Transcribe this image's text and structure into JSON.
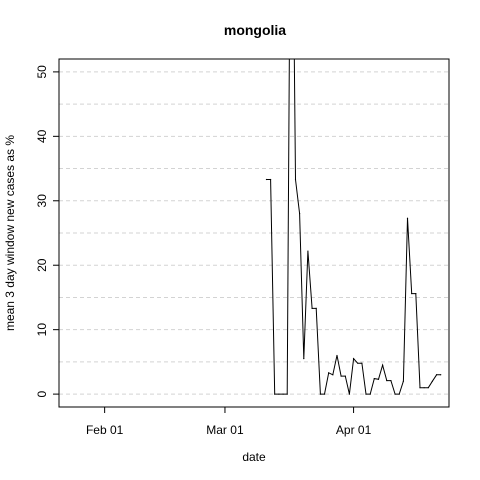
{
  "chart_data": {
    "type": "line",
    "title": "mongolia",
    "xlabel": "date",
    "ylabel": "mean  3  day window new cases as %",
    "x_start": "2020-01-21",
    "x_end": "2020-04-24",
    "ylim": [
      -2,
      52
    ],
    "x_ticks": [
      {
        "label": "Feb 01",
        "date": "2020-02-01"
      },
      {
        "label": "Mar 01",
        "date": "2020-03-01"
      },
      {
        "label": "Apr 01",
        "date": "2020-04-01"
      }
    ],
    "y_ticks": [
      0,
      10,
      20,
      30,
      40,
      50
    ],
    "y_gridlines": [
      0,
      5,
      10,
      15,
      20,
      25,
      30,
      35,
      40,
      45,
      50
    ],
    "grid": "horizontal-dashed",
    "series": [
      {
        "color": "#000000",
        "x": [
          "2020-03-11",
          "2020-03-12",
          "2020-03-13",
          "2020-03-14",
          "2020-03-15",
          "2020-03-16",
          "2020-03-17",
          "2020-03-18",
          "2020-03-19",
          "2020-03-20",
          "2020-03-21",
          "2020-03-22",
          "2020-03-23",
          "2020-03-24",
          "2020-03-25",
          "2020-03-26",
          "2020-03-27",
          "2020-03-28",
          "2020-03-29",
          "2020-03-30",
          "2020-03-31",
          "2020-04-01",
          "2020-04-02",
          "2020-04-03",
          "2020-04-04",
          "2020-04-05",
          "2020-04-06",
          "2020-04-07",
          "2020-04-08",
          "2020-04-09",
          "2020-04-10",
          "2020-04-11",
          "2020-04-12",
          "2020-04-13",
          "2020-04-14",
          "2020-04-15",
          "2020-04-16",
          "2020-04-17",
          "2020-04-18",
          "2020-04-19",
          "2020-04-20",
          "2020-04-21",
          "2020-04-22"
        ],
        "y": [
          33.3,
          33.3,
          0,
          0,
          0,
          0,
          100,
          33.3,
          28.0,
          5.5,
          22.2,
          13.3,
          13.3,
          0,
          0,
          3.3,
          3.0,
          6.0,
          2.8,
          2.8,
          0,
          5.5,
          4.8,
          4.8,
          0,
          0,
          2.4,
          2.3,
          4.5,
          2.1,
          2.1,
          0,
          0,
          2.0,
          27.3,
          15.6,
          15.6,
          1.0,
          1.0,
          1.0,
          2.0,
          3.0,
          3.0
        ]
      }
    ]
  }
}
